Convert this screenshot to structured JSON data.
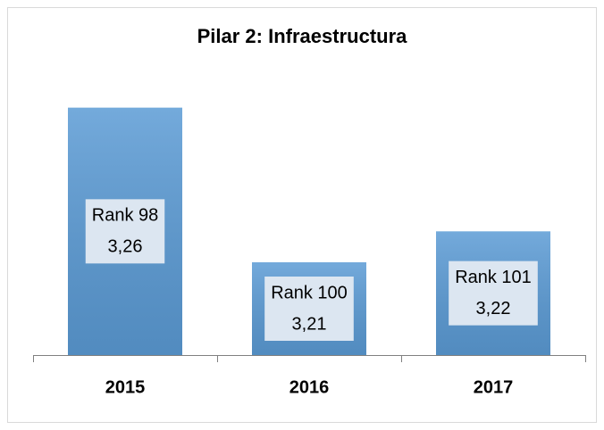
{
  "chart_data": {
    "type": "bar",
    "title": "Pilar 2: Infraestructura",
    "categories": [
      "2015",
      "2016",
      "2017"
    ],
    "values": [
      3.26,
      3.21,
      3.22
    ],
    "value_labels": [
      "3,26",
      "3,21",
      "3,22"
    ],
    "rank_labels": [
      "Rank 98",
      "Rank 100",
      "Rank 101"
    ],
    "color": "#5b9bd5",
    "ylim": [
      3.18,
      3.27
    ]
  }
}
